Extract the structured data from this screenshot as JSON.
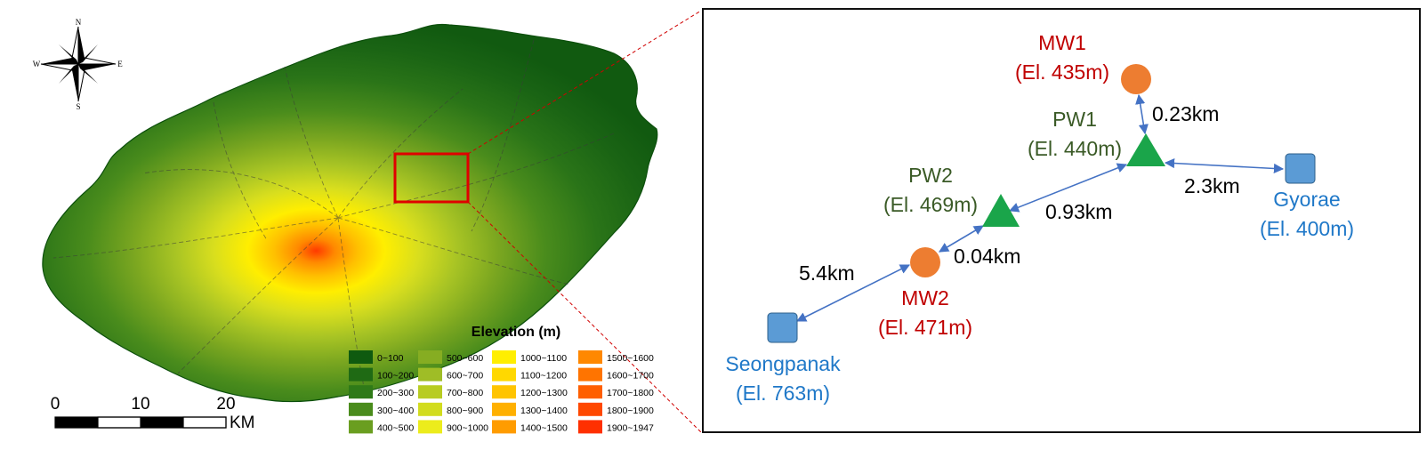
{
  "compass": {
    "n": "N",
    "s": "S",
    "e": "E",
    "w": "W"
  },
  "scale_bar": {
    "ticks": [
      "0",
      "10",
      "20"
    ],
    "unit": "KM"
  },
  "legend": {
    "title": "Elevation (m)",
    "items": [
      {
        "label": "0~100",
        "color": "#0f5a0f"
      },
      {
        "label": "100~200",
        "color": "#1f6a14"
      },
      {
        "label": "200~300",
        "color": "#2f7a18"
      },
      {
        "label": "300~400",
        "color": "#4a8c1c"
      },
      {
        "label": "400~500",
        "color": "#6a9e20"
      },
      {
        "label": "500~600",
        "color": "#86ad22"
      },
      {
        "label": "600~700",
        "color": "#9fbd26"
      },
      {
        "label": "700~800",
        "color": "#b8cc22"
      },
      {
        "label": "800~900",
        "color": "#d2dc1e"
      },
      {
        "label": "900~1000",
        "color": "#ecec1c"
      },
      {
        "label": "1000~1100",
        "color": "#ffee00"
      },
      {
        "label": "1100~1200",
        "color": "#ffd800"
      },
      {
        "label": "1200~1300",
        "color": "#ffc400"
      },
      {
        "label": "1300~1400",
        "color": "#ffb000"
      },
      {
        "label": "1400~1500",
        "color": "#ff9c00"
      },
      {
        "label": "1500~1600",
        "color": "#ff8800"
      },
      {
        "label": "1600~1700",
        "color": "#ff7400"
      },
      {
        "label": "1700~1800",
        "color": "#ff5f00"
      },
      {
        "label": "1800~1900",
        "color": "#ff4800"
      },
      {
        "label": "1900~1947",
        "color": "#ff3000"
      }
    ]
  },
  "wells": {
    "mw1": {
      "name": "MW1",
      "elev": "(El. 435m)"
    },
    "pw1": {
      "name": "PW1",
      "elev": "(El. 440m)"
    },
    "pw2": {
      "name": "PW2",
      "elev": "(El. 469m)"
    },
    "mw2": {
      "name": "MW2",
      "elev": "(El. 471m)"
    },
    "gyorae": {
      "name": "Gyorae",
      "elev": "(El. 400m)"
    },
    "seongpanak": {
      "name": "Seongpanak",
      "elev": "(El. 763m)"
    }
  },
  "distances": {
    "mw1_pw1": "0.23km",
    "pw1_gyorae": "2.3km",
    "pw2_pw1": "0.93km",
    "mw2_pw2": "0.04km",
    "seongpanak_mw2": "5.4km"
  },
  "colors": {
    "monitoring": "#c00000",
    "pumping": "#3a5a26",
    "reference": "#1f78c8",
    "circle": "#ed7d31",
    "triangle": "#1aa54a",
    "square": "#5b9bd5",
    "arrow": "#4472c4",
    "highlight": "#e00000"
  }
}
